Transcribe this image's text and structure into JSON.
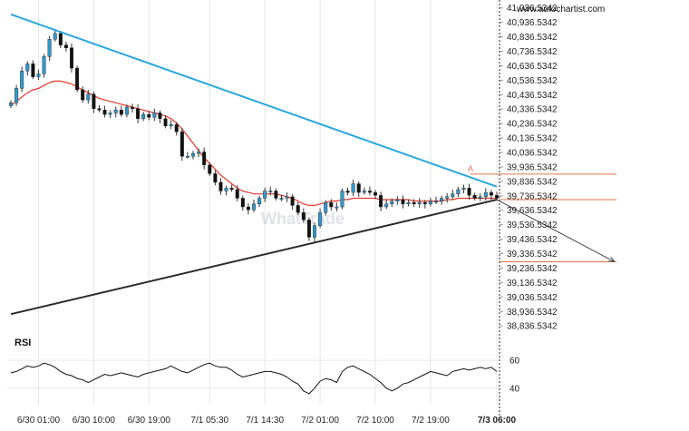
{
  "site": "www.autochartist.com",
  "watermark": "WhatTrade",
  "rsi_title": "RSI",
  "pattern_label": "A",
  "chart_data": {
    "type": "candlestick",
    "y_ticks": [
      "41,036.5342",
      "40,936.5342",
      "40,836.5342",
      "40,736.5342",
      "40,636.5342",
      "40,536.5342",
      "40,436.5342",
      "40,336.5342",
      "40,236.5342",
      "40,136.5342",
      "40,036.5342",
      "39,936.5342",
      "39,836.5342",
      "39,736.5342",
      "39,636.5342",
      "39,536.5342",
      "39,436.5342",
      "39,336.5342",
      "39,236.5342",
      "39,136.5342",
      "39,036.5342",
      "38,936.5342",
      "38,836.5342"
    ],
    "y_tick_values": [
      41036.5342,
      40936.5342,
      40836.5342,
      40736.5342,
      40636.5342,
      40536.5342,
      40436.5342,
      40336.5342,
      40236.5342,
      40136.5342,
      40036.5342,
      39936.5342,
      39836.5342,
      39736.5342,
      39636.5342,
      39536.5342,
      39436.5342,
      39336.5342,
      39236.5342,
      39136.5342,
      39036.5342,
      38936.5342,
      38836.5342
    ],
    "x_ticks": [
      "6/30 01:00",
      "6/30 10:00",
      "6/30 19:00",
      "7/1 05:30",
      "7/1 14:30",
      "7/2 01:00",
      "7/2 10:00",
      "7/2 19:00",
      "7/3 06:00"
    ],
    "x_tick_index": [
      5,
      15,
      25,
      36,
      46,
      56,
      66,
      76,
      88
    ],
    "ylim": [
      38800,
      41060
    ],
    "n_bars": 89,
    "close": [
      40380,
      40480,
      40600,
      40650,
      40560,
      40580,
      40700,
      40820,
      40860,
      40780,
      40760,
      40620,
      40470,
      40400,
      40440,
      40340,
      40330,
      40300,
      40310,
      40330,
      40300,
      40350,
      40340,
      40270,
      40300,
      40280,
      40310,
      40270,
      40220,
      40230,
      40180,
      40010,
      40010,
      40030,
      40040,
      39950,
      39890,
      39830,
      39770,
      39790,
      39780,
      39720,
      39660,
      39640,
      39680,
      39720,
      39770,
      39770,
      39720,
      39720,
      39730,
      39670,
      39620,
      39570,
      39450,
      39530,
      39620,
      39690,
      39660,
      39660,
      39770,
      39760,
      39820,
      39760,
      39770,
      39760,
      39740,
      39660,
      39680,
      39700,
      39710,
      39680,
      39690,
      39680,
      39690,
      39680,
      39700,
      39700,
      39720,
      39730,
      39750,
      39780,
      39790,
      39740,
      39720,
      39730,
      39760,
      39740,
      39720
    ],
    "ma": [
      40360,
      40390,
      40420,
      40450,
      40470,
      40480,
      40500,
      40520,
      40530,
      40530,
      40520,
      40510,
      40490,
      40470,
      40450,
      40430,
      40410,
      40400,
      40390,
      40380,
      40370,
      40360,
      40350,
      40340,
      40330,
      40320,
      40310,
      40300,
      40290,
      40270,
      40240,
      40200,
      40150,
      40100,
      40050,
      40000,
      39960,
      39920,
      39880,
      39850,
      39820,
      39790,
      39770,
      39760,
      39750,
      39750,
      39750,
      39750,
      39750,
      39740,
      39730,
      39720,
      39700,
      39680,
      39670,
      39670,
      39680,
      39690,
      39700,
      39700,
      39710,
      39710,
      39720,
      39720,
      39720,
      39720,
      39720,
      39710,
      39710,
      39710,
      39710,
      39710,
      39710,
      39700,
      39700,
      39700,
      39700,
      39700,
      39700,
      39710,
      39710,
      39720,
      39720,
      39720,
      39720,
      39720,
      39720,
      39720,
      39720
    ],
    "resistance_line": {
      "from": {
        "bar": 0,
        "value": 40992
      },
      "to": {
        "bar": 88,
        "value": 39800
      }
    },
    "support_line": {
      "from": {
        "bar": 0,
        "value": 38918
      },
      "to": {
        "bar": 88,
        "value": 39710
      }
    },
    "levels": [
      39886.5,
      39710.5,
      39280.5
    ],
    "forecast": {
      "from": {
        "bar": 88,
        "value": 39710
      },
      "to": {
        "bar": 108,
        "value": 39280
      }
    },
    "rsi": {
      "ticks": [
        "60",
        "40"
      ],
      "tick_values": [
        60,
        40
      ],
      "ylim": [
        32,
        66
      ],
      "values": [
        51,
        52,
        54,
        56,
        55,
        56,
        58,
        57,
        55,
        52,
        50,
        49,
        47,
        46,
        44,
        46,
        48,
        50,
        49,
        50,
        51,
        50,
        49,
        48,
        50,
        51,
        52,
        53,
        54,
        56,
        54,
        52,
        51,
        53,
        55,
        57,
        58,
        56,
        55,
        55,
        53,
        50,
        48,
        49,
        50,
        51,
        52,
        52,
        51,
        50,
        48,
        45,
        43,
        38,
        36,
        40,
        45,
        47,
        46,
        44,
        52,
        55,
        56,
        54,
        52,
        50,
        47,
        44,
        40,
        38,
        40,
        43,
        44,
        46,
        48,
        50,
        52,
        51,
        50,
        49,
        52,
        53,
        54,
        53,
        54,
        55,
        54,
        55,
        52
      ]
    }
  },
  "colors": {
    "up": "#3399cc",
    "down": "#111111",
    "ma": "#e0392b",
    "resistance": "#29a8df",
    "support": "#2a2a2a",
    "level": "#e8734a",
    "forecast": "#444444",
    "rsi": "#111111",
    "grid": "#e6e6e6"
  }
}
